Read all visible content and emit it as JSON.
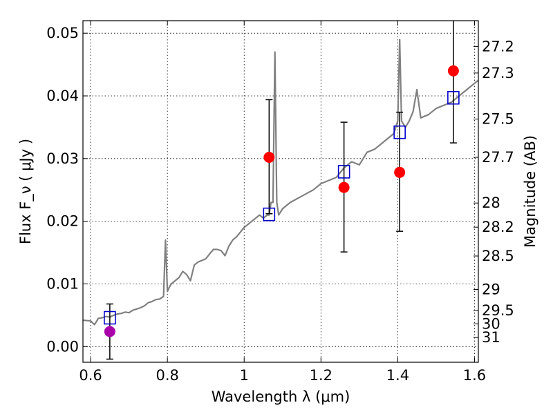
{
  "chart_data": {
    "type": "scatter",
    "xlabel": "Wavelength  λ (μm)",
    "ylabel": "Flux  F_ν  ( μJy )",
    "ylabel_right": "Magnitude (AB)",
    "xlim": [
      0.58,
      1.61
    ],
    "ylim": [
      -0.0025,
      0.052
    ],
    "grid": true,
    "x_ticks": [
      0.6,
      0.8,
      1.0,
      1.2,
      1.4,
      1.6
    ],
    "x_tick_labels": [
      "0.6",
      "0.8",
      "1",
      "1.2",
      "1.4",
      "1.6"
    ],
    "y_ticks": [
      0.0,
      0.01,
      0.02,
      0.03,
      0.04,
      0.05
    ],
    "y_tick_labels": [
      "0.00",
      "0.01",
      "0.02",
      "0.03",
      "0.04",
      "0.05"
    ],
    "mag_ticks": [
      27.2,
      27.3,
      27.5,
      27.7,
      28,
      28.2,
      28.5,
      29,
      29.5,
      30,
      31
    ],
    "mag_tick_labels": [
      "27.2",
      "27.3",
      "27.5",
      "27.7",
      "28",
      "28.2",
      "28.5",
      "29",
      "29.5",
      "30",
      "31"
    ],
    "series": [
      {
        "type": "line",
        "color": "#808080",
        "x": [
          0.58,
          0.6,
          0.61,
          0.62,
          0.63,
          0.64,
          0.65,
          0.66,
          0.67,
          0.68,
          0.69,
          0.7,
          0.71,
          0.72,
          0.73,
          0.74,
          0.75,
          0.76,
          0.77,
          0.78,
          0.79,
          0.795,
          0.8,
          0.805,
          0.81,
          0.82,
          0.83,
          0.84,
          0.85,
          0.86,
          0.87,
          0.88,
          0.9,
          0.91,
          0.92,
          0.93,
          0.94,
          0.95,
          0.96,
          0.97,
          0.98,
          1.0,
          1.02,
          1.04,
          1.05,
          1.06,
          1.065,
          1.07,
          1.075,
          1.08,
          1.085,
          1.09,
          1.1,
          1.12,
          1.15,
          1.18,
          1.2,
          1.22,
          1.24,
          1.26,
          1.28,
          1.3,
          1.32,
          1.34,
          1.36,
          1.38,
          1.39,
          1.4,
          1.405,
          1.41,
          1.42,
          1.43,
          1.44,
          1.45,
          1.46,
          1.48,
          1.5,
          1.52,
          1.54,
          1.56,
          1.58,
          1.6,
          1.61
        ],
        "y": [
          0.0042,
          0.0041,
          0.0035,
          0.0045,
          0.0046,
          0.0048,
          0.0047,
          0.005,
          0.0052,
          0.0053,
          0.0055,
          0.0054,
          0.0058,
          0.006,
          0.0062,
          0.0065,
          0.007,
          0.0072,
          0.0075,
          0.0076,
          0.008,
          0.017,
          0.0088,
          0.0095,
          0.01,
          0.0105,
          0.011,
          0.012,
          0.0115,
          0.0105,
          0.013,
          0.0135,
          0.014,
          0.0148,
          0.0155,
          0.0155,
          0.0153,
          0.0145,
          0.016,
          0.017,
          0.0175,
          0.019,
          0.02,
          0.021,
          0.0205,
          0.021,
          0.021,
          0.023,
          0.023,
          0.047,
          0.023,
          0.021,
          0.022,
          0.023,
          0.024,
          0.025,
          0.026,
          0.0265,
          0.027,
          0.0285,
          0.0295,
          0.029,
          0.031,
          0.0315,
          0.0325,
          0.0335,
          0.034,
          0.036,
          0.049,
          0.036,
          0.035,
          0.036,
          0.0375,
          0.041,
          0.0365,
          0.037,
          0.038,
          0.0385,
          0.039,
          0.04,
          0.041,
          0.042,
          0.0425
        ]
      },
      {
        "type": "scatter",
        "marker": "square-open",
        "color": "#0000cc",
        "x": [
          0.65,
          1.065,
          1.26,
          1.405,
          1.545
        ],
        "y": [
          0.0046,
          0.0211,
          0.0279,
          0.0342,
          0.0397
        ]
      },
      {
        "type": "scatter",
        "marker": "circle",
        "color": "#ff0000",
        "x": [
          1.065,
          1.26,
          1.405,
          1.545
        ],
        "y": [
          0.0302,
          0.0254,
          0.0278,
          0.044
        ],
        "yerr_low": [
          0.0212,
          0.0151,
          0.0184,
          0.0325
        ],
        "yerr_high": [
          0.0394,
          0.0358,
          0.0374,
          0.0525
        ]
      },
      {
        "type": "scatter",
        "marker": "circle",
        "color": "#aa00aa",
        "x": [
          0.65
        ],
        "y": [
          0.0024
        ],
        "yerr_low": [
          -0.002
        ],
        "yerr_high": [
          0.0068
        ]
      }
    ]
  }
}
